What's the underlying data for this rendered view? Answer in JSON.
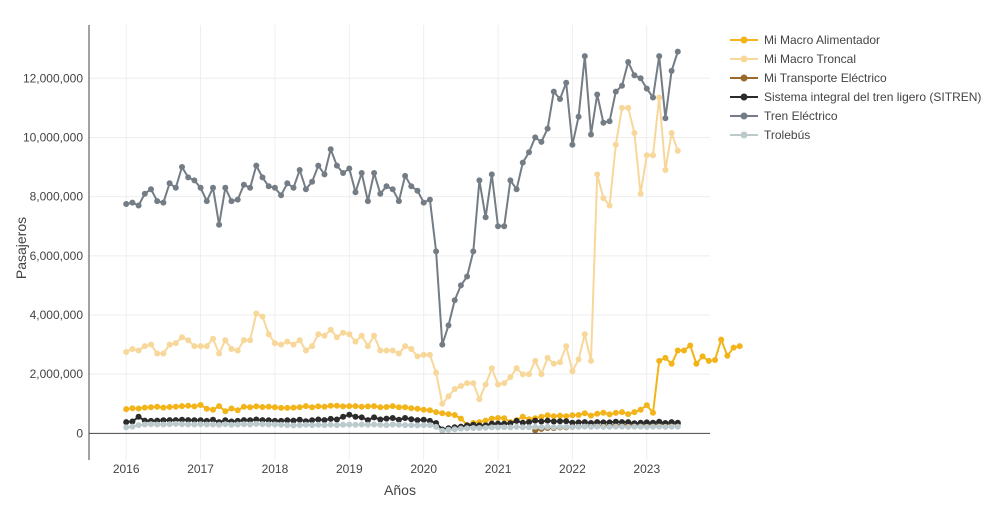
{
  "chart_data": {
    "type": "line",
    "xlabel": "Años",
    "ylabel": "Pasajeros",
    "xlim": [
      2015.5,
      2023.85
    ],
    "ylim": [
      -900000,
      13800000
    ],
    "x_ticks": [
      "2016",
      "2017",
      "2018",
      "2019",
      "2020",
      "2021",
      "2022",
      "2023"
    ],
    "y_ticks": [
      "0",
      "2,000,000",
      "4,000,000",
      "6,000,000",
      "8,000,000",
      "10,000,000",
      "12,000,000"
    ],
    "y_tick_values": [
      0,
      2000000,
      4000000,
      6000000,
      8000000,
      10000000,
      12000000
    ],
    "grid": true,
    "legend_position": "top-right",
    "x_start_year": 2016,
    "x_start_month": 1,
    "series": [
      {
        "name": "Mi Macro Alimentador",
        "color": "#f2b419",
        "values": [
          820000,
          850000,
          840000,
          870000,
          880000,
          900000,
          870000,
          890000,
          900000,
          920000,
          930000,
          910000,
          960000,
          830000,
          800000,
          920000,
          750000,
          840000,
          780000,
          900000,
          880000,
          910000,
          890000,
          900000,
          880000,
          860000,
          860000,
          870000,
          880000,
          920000,
          880000,
          910000,
          900000,
          930000,
          930000,
          910000,
          920000,
          920000,
          900000,
          910000,
          920000,
          880000,
          890000,
          920000,
          880000,
          880000,
          850000,
          830000,
          800000,
          780000,
          720000,
          680000,
          650000,
          620000,
          500000,
          280000,
          350000,
          380000,
          430000,
          500000,
          520000,
          510000,
          380000,
          450000,
          560000,
          480000,
          510000,
          560000,
          610000,
          580000,
          600000,
          580000,
          610000,
          620000,
          680000,
          600000,
          660000,
          700000,
          640000,
          690000,
          720000,
          650000,
          720000,
          800000,
          950000,
          700000,
          2450000,
          2550000,
          2350000,
          2800000,
          2800000,
          2970000,
          2350000,
          2600000,
          2450000,
          2480000,
          3170000,
          2620000,
          2900000,
          2950000
        ]
      },
      {
        "name": "Mi Macro Troncal",
        "color": "#f8d79a",
        "values": [
          2750000,
          2850000,
          2800000,
          2950000,
          3000000,
          2700000,
          2700000,
          3000000,
          3050000,
          3250000,
          3150000,
          2950000,
          2950000,
          2950000,
          3200000,
          2700000,
          3150000,
          2850000,
          2800000,
          3150000,
          3150000,
          4050000,
          3950000,
          3350000,
          3050000,
          3000000,
          3100000,
          3000000,
          3150000,
          2800000,
          2950000,
          3350000,
          3300000,
          3500000,
          3250000,
          3400000,
          3350000,
          3100000,
          3300000,
          2950000,
          3300000,
          2800000,
          2800000,
          2800000,
          2700000,
          2950000,
          2850000,
          2600000,
          2650000,
          2650000,
          2050000,
          1000000,
          1250000,
          1500000,
          1600000,
          1700000,
          1700000,
          1150000,
          1650000,
          2200000,
          1650000,
          1700000,
          1900000,
          2200000,
          2000000,
          2000000,
          2450000,
          2000000,
          2550000,
          2350000,
          2400000,
          2950000,
          2100000,
          2500000,
          3350000,
          2450000,
          8750000,
          7950000,
          7700000,
          9750000,
          11000000,
          11000000,
          10150000,
          8100000,
          9400000,
          9400000,
          11350000,
          8900000,
          10150000,
          9550000
        ]
      },
      {
        "name": "Mi Transporte Eléctrico",
        "color": "#9a6a2c",
        "values": [
          null,
          null,
          null,
          null,
          null,
          null,
          null,
          null,
          null,
          null,
          null,
          null,
          null,
          null,
          null,
          null,
          null,
          null,
          null,
          null,
          null,
          null,
          null,
          null,
          null,
          null,
          null,
          null,
          null,
          null,
          null,
          null,
          null,
          null,
          null,
          null,
          null,
          null,
          null,
          null,
          null,
          null,
          null,
          null,
          null,
          null,
          null,
          null,
          null,
          null,
          null,
          null,
          null,
          null,
          null,
          null,
          null,
          null,
          null,
          null,
          null,
          null,
          null,
          null,
          null,
          null,
          100000,
          150000,
          180000,
          180000,
          200000,
          200000,
          220000,
          230000,
          240000,
          240000,
          250000,
          260000,
          270000,
          280000,
          280000,
          290000,
          300000,
          300000,
          310000,
          310000,
          320000,
          320000,
          330000,
          330000
        ]
      },
      {
        "name": "Sistema integral del tren ligero (SITREN)",
        "color": "#2b2b2b",
        "values": [
          380000,
          400000,
          560000,
          430000,
          420000,
          430000,
          440000,
          450000,
          450000,
          460000,
          450000,
          440000,
          440000,
          420000,
          460000,
          380000,
          440000,
          400000,
          420000,
          450000,
          440000,
          470000,
          450000,
          440000,
          420000,
          420000,
          440000,
          430000,
          460000,
          410000,
          440000,
          470000,
          450000,
          490000,
          470000,
          560000,
          630000,
          560000,
          540000,
          450000,
          540000,
          470000,
          500000,
          520000,
          460000,
          520000,
          480000,
          450000,
          460000,
          420000,
          350000,
          130000,
          170000,
          210000,
          230000,
          270000,
          290000,
          270000,
          270000,
          330000,
          330000,
          330000,
          340000,
          420000,
          360000,
          380000,
          430000,
          400000,
          430000,
          400000,
          410000,
          410000,
          360000,
          370000,
          380000,
          350000,
          380000,
          370000,
          370000,
          390000,
          380000,
          380000,
          340000,
          360000,
          370000,
          360000,
          390000,
          350000,
          380000,
          360000
        ]
      },
      {
        "name": "Tren Eléctrico",
        "color": "#747d85",
        "values": [
          7750000,
          7800000,
          7700000,
          8100000,
          8250000,
          7850000,
          7800000,
          8450000,
          8300000,
          9000000,
          8650000,
          8550000,
          8300000,
          7850000,
          8300000,
          7050000,
          8300000,
          7850000,
          7900000,
          8400000,
          8300000,
          9050000,
          8650000,
          8350000,
          8300000,
          8050000,
          8450000,
          8300000,
          8900000,
          8250000,
          8500000,
          9050000,
          8750000,
          9600000,
          9050000,
          8800000,
          8950000,
          8150000,
          8800000,
          7850000,
          8800000,
          8100000,
          8350000,
          8250000,
          7850000,
          8700000,
          8350000,
          8200000,
          7800000,
          7900000,
          6150000,
          3000000,
          3650000,
          4500000,
          5000000,
          5300000,
          6150000,
          8550000,
          7300000,
          8750000,
          7000000,
          7000000,
          8550000,
          8250000,
          9150000,
          9500000,
          10000000,
          9850000,
          10300000,
          11550000,
          11300000,
          11850000,
          9750000,
          10700000,
          12750000,
          10100000,
          11450000,
          10500000,
          10550000,
          11550000,
          11750000,
          12550000,
          12100000,
          12000000,
          11650000,
          11350000,
          12750000,
          10650000,
          12250000,
          12900000
        ]
      },
      {
        "name": "Trolebús",
        "color": "#bccace",
        "values": [
          200000,
          230000,
          280000,
          300000,
          310000,
          300000,
          300000,
          310000,
          320000,
          310000,
          300000,
          300000,
          310000,
          300000,
          300000,
          290000,
          310000,
          290000,
          300000,
          310000,
          300000,
          320000,
          310000,
          300000,
          300000,
          290000,
          280000,
          270000,
          280000,
          290000,
          280000,
          290000,
          280000,
          290000,
          280000,
          290000,
          300000,
          290000,
          300000,
          290000,
          300000,
          290000,
          280000,
          300000,
          290000,
          280000,
          280000,
          270000,
          280000,
          280000,
          220000,
          90000,
          120000,
          140000,
          160000,
          170000,
          180000,
          180000,
          190000,
          200000,
          200000,
          210000,
          200000,
          220000,
          210000,
          210000,
          220000,
          210000,
          220000,
          210000,
          220000,
          220000,
          210000,
          220000,
          230000,
          220000,
          230000,
          220000,
          220000,
          230000,
          230000,
          220000,
          230000,
          230000,
          220000,
          230000,
          230000,
          220000,
          230000,
          230000
        ]
      }
    ]
  }
}
